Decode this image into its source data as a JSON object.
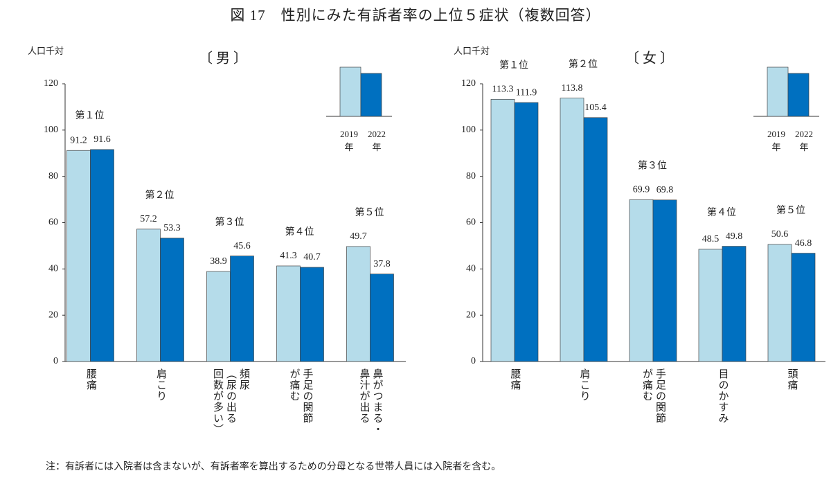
{
  "title": "図 17　性別にみた有訴者率の上位５症状（複数回答）",
  "note": "注：有訴者には入院者は含まないが、有訴者率を算出するための分母となる世帯人員には入院者を含む。",
  "chart_data": [
    {
      "type": "bar",
      "title": "〔 男 〕",
      "y_label": "人口千対",
      "categories": [
        "腰痛",
        "肩こり",
        "頻尿\n（尿の出る\n回数が多い）",
        "手足の関節\nが痛む",
        "鼻がつまる・\n鼻汁が出る"
      ],
      "ranks": [
        "第１位",
        "第２位",
        "第３位",
        "第４位",
        "第５位"
      ],
      "series": [
        {
          "name": "2019年",
          "color": "#b5dcea",
          "values": [
            91.2,
            57.2,
            38.9,
            41.3,
            49.7
          ]
        },
        {
          "name": "2022年",
          "color": "#0070c0",
          "values": [
            91.6,
            53.3,
            45.6,
            40.7,
            37.8
          ]
        }
      ],
      "ylim": [
        0,
        120
      ],
      "yticks": [
        0,
        20,
        40,
        60,
        80,
        100,
        120
      ]
    },
    {
      "type": "bar",
      "title": "〔 女 〕",
      "y_label": "人口千対",
      "categories": [
        "腰痛",
        "肩こり",
        "手足の関節\nが痛む",
        "目のかすみ",
        "頭痛"
      ],
      "ranks": [
        "第１位",
        "第２位",
        "第３位",
        "第４位",
        "第５位"
      ],
      "series": [
        {
          "name": "2019年",
          "color": "#b5dcea",
          "values": [
            113.3,
            113.8,
            69.9,
            48.5,
            50.6
          ]
        },
        {
          "name": "2022年",
          "color": "#0070c0",
          "values": [
            111.9,
            105.4,
            69.8,
            49.8,
            46.8
          ]
        }
      ],
      "ylim": [
        0,
        120
      ],
      "yticks": [
        0,
        20,
        40,
        60,
        80,
        100,
        120
      ]
    }
  ]
}
